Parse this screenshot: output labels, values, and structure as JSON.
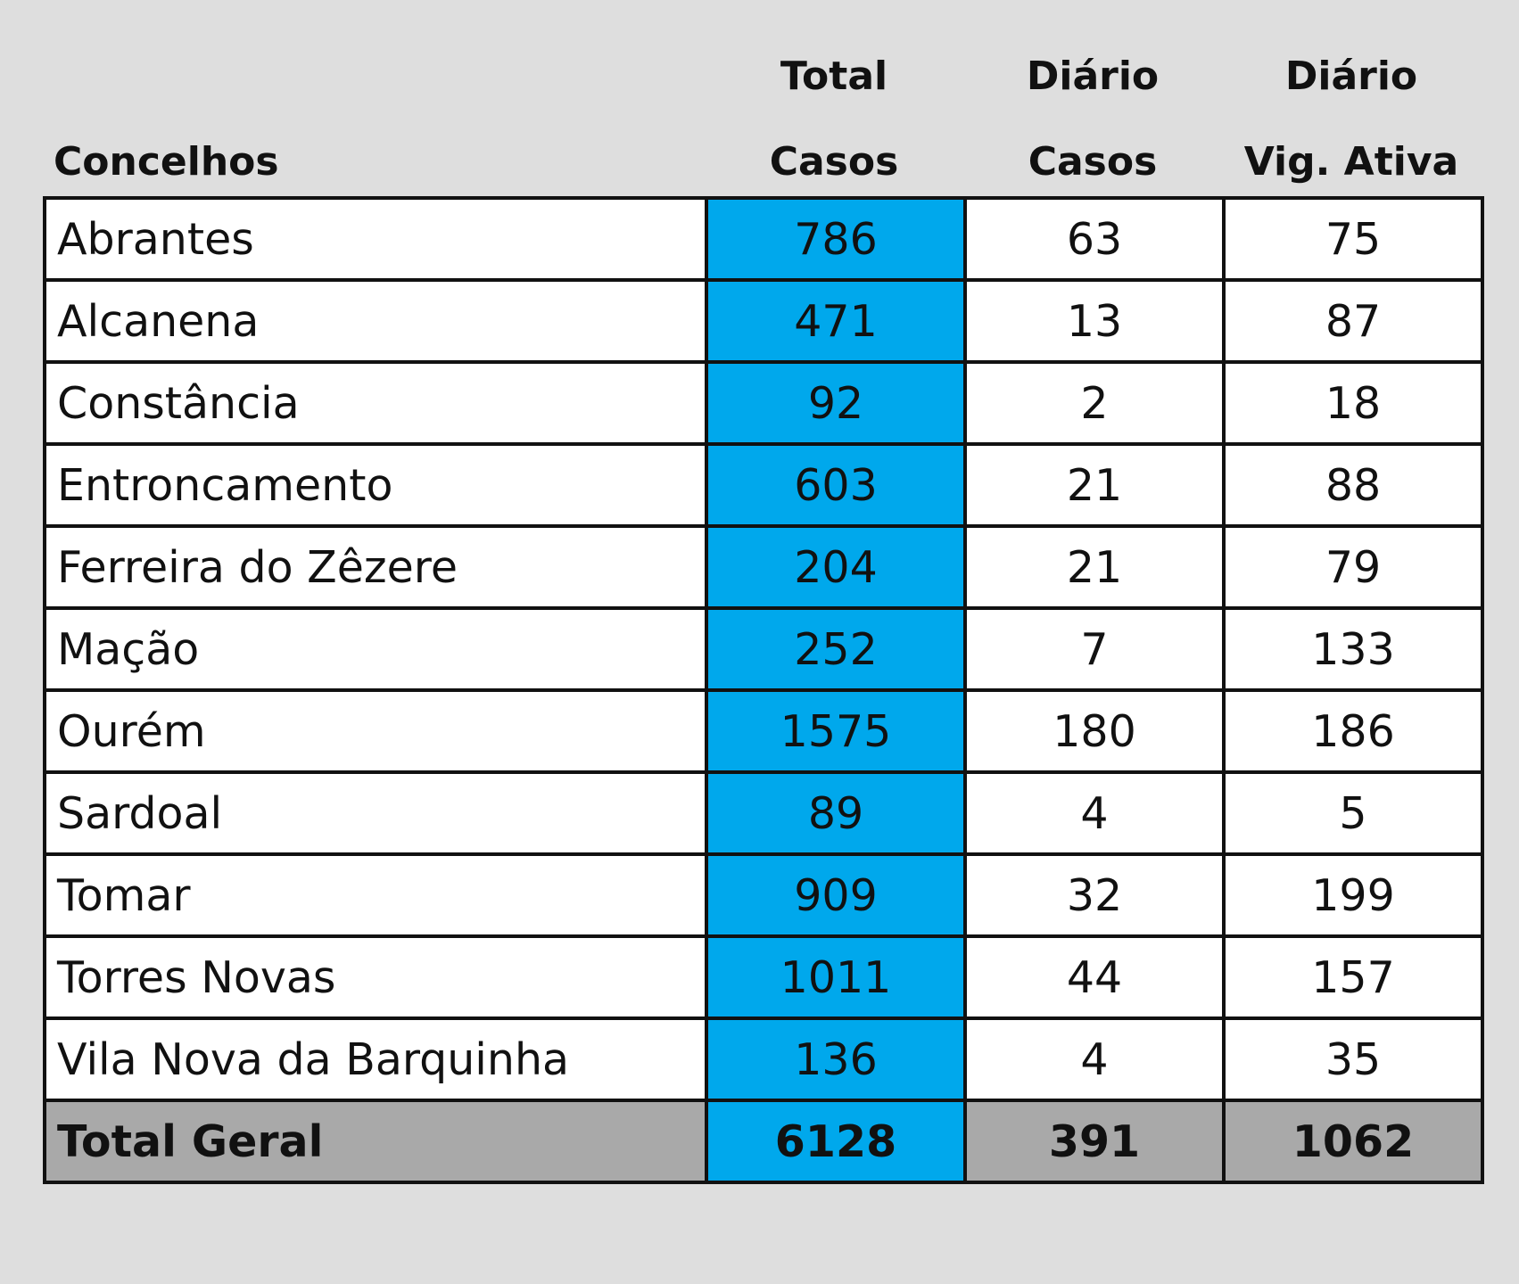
{
  "header": {
    "col_concelhos": "Concelhos",
    "col_total_line1": "Total",
    "col_total_line2": "Casos",
    "col_diario_casos_line1": "Diário",
    "col_diario_casos_line2": "Casos",
    "col_diario_vig_line1": "Diário",
    "col_diario_vig_line2": "Vig. Ativa"
  },
  "rows": [
    {
      "concelho": "Abrantes",
      "total_casos": "786",
      "diario_casos": "63",
      "diario_vig_ativa": "75"
    },
    {
      "concelho": "Alcanena",
      "total_casos": "471",
      "diario_casos": "13",
      "diario_vig_ativa": "87"
    },
    {
      "concelho": "Constância",
      "total_casos": "92",
      "diario_casos": "2",
      "diario_vig_ativa": "18"
    },
    {
      "concelho": "Entroncamento",
      "total_casos": "603",
      "diario_casos": "21",
      "diario_vig_ativa": "88"
    },
    {
      "concelho": "Ferreira do Zêzere",
      "total_casos": "204",
      "diario_casos": "21",
      "diario_vig_ativa": "79"
    },
    {
      "concelho": "Mação",
      "total_casos": "252",
      "diario_casos": "7",
      "diario_vig_ativa": "133"
    },
    {
      "concelho": "Ourém",
      "total_casos": "1575",
      "diario_casos": "180",
      "diario_vig_ativa": "186"
    },
    {
      "concelho": "Sardoal",
      "total_casos": "89",
      "diario_casos": "4",
      "diario_vig_ativa": "5"
    },
    {
      "concelho": "Tomar",
      "total_casos": "909",
      "diario_casos": "32",
      "diario_vig_ativa": "199"
    },
    {
      "concelho": "Torres Novas",
      "total_casos": "1011",
      "diario_casos": "44",
      "diario_vig_ativa": "157"
    },
    {
      "concelho": "Vila Nova da Barquinha",
      "total_casos": "136",
      "diario_casos": "4",
      "diario_vig_ativa": "35"
    }
  ],
  "total_geral": {
    "label": "Total Geral",
    "total_casos": "6128",
    "diario_casos": "391",
    "diario_vig_ativa": "1062"
  },
  "colors": {
    "background": "#dedede",
    "total_column": "#00a8ec",
    "total_row": "#a9a9a9",
    "border": "#111111"
  }
}
